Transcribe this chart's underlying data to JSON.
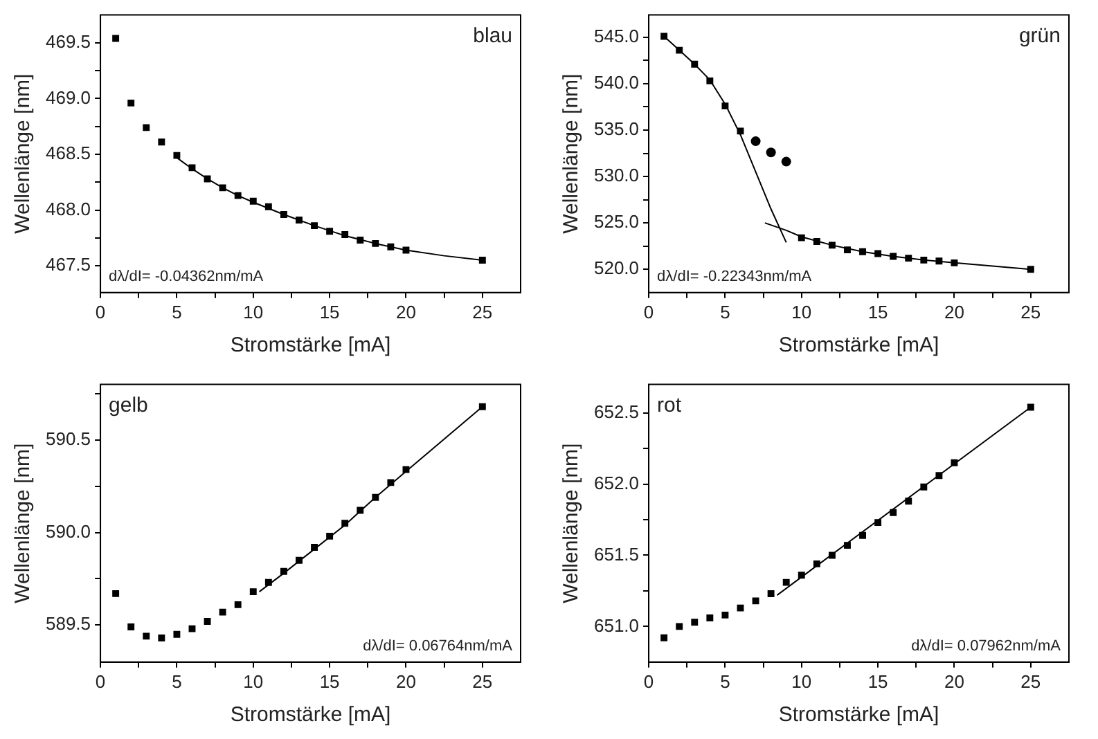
{
  "chart_data": [
    {
      "type": "scatter",
      "xlabel": "Stromstärke [mA]",
      "ylabel": "Wellenlänge [nm]",
      "annotations": [
        "blau",
        "dλ/dI= -0.04362nm/mA"
      ],
      "marker": "square",
      "xlim": [
        0,
        27.5
      ],
      "xticks": [
        0,
        {
          "value": 2.5,
          "label": null
        },
        5,
        {
          "value": 7.5,
          "label": null
        },
        10,
        {
          "value": 12.5,
          "label": null
        },
        15,
        {
          "value": 17.5,
          "label": null
        },
        20,
        {
          "value": 22.5,
          "label": null
        },
        25
      ],
      "ylim": [
        467.26,
        469.75
      ],
      "yticks": [
        {
          "value": 467.5,
          "label": "467.5"
        },
        {
          "value": 467.75,
          "label": null
        },
        {
          "value": 468.0,
          "label": "468.0"
        },
        {
          "value": 468.25,
          "label": null
        },
        {
          "value": 468.5,
          "label": "468.5"
        },
        {
          "value": 468.75,
          "label": null
        },
        {
          "value": 469.0,
          "label": "469.0"
        },
        {
          "value": 469.25,
          "label": null
        },
        {
          "value": 469.5,
          "label": "469.5"
        }
      ],
      "series": [
        {
          "type": "scatter",
          "color": "#000000",
          "x": [
            1,
            2,
            3,
            4,
            5,
            6,
            7,
            8,
            9,
            10,
            11,
            12,
            13,
            14,
            15,
            16,
            17,
            18,
            19,
            20,
            25
          ],
          "values": [
            469.54,
            468.96,
            468.74,
            468.61,
            468.49,
            468.38,
            468.28,
            468.2,
            468.13,
            468.08,
            468.03,
            467.96,
            467.91,
            467.86,
            467.81,
            467.78,
            467.73,
            467.7,
            467.67,
            467.64,
            467.55
          ]
        },
        {
          "type": "line",
          "color": "#000000",
          "marker": "none",
          "x": [
            5,
            6,
            7,
            8,
            9,
            10,
            12,
            14,
            16,
            18,
            20,
            22.5,
            25
          ],
          "values": [
            468.47,
            468.37,
            468.28,
            468.2,
            468.13,
            468.07,
            467.96,
            467.86,
            467.77,
            467.7,
            467.64,
            467.59,
            467.55
          ]
        }
      ]
    },
    {
      "type": "scatter",
      "xlabel": "Stromstärke [mA]",
      "ylabel": "Wellenlänge [nm]",
      "annotations": [
        "grün",
        "dλ/dI= -0.22343nm/mA"
      ],
      "marker": "square",
      "xlim": [
        0,
        27.5
      ],
      "xticks": [
        0,
        {
          "value": 2.5,
          "label": null
        },
        5,
        {
          "value": 7.5,
          "label": null
        },
        10,
        {
          "value": 12.5,
          "label": null
        },
        15,
        {
          "value": 17.5,
          "label": null
        },
        20,
        {
          "value": 22.5,
          "label": null
        },
        25
      ],
      "ylim": [
        517.5,
        547.4
      ],
      "yticks": [
        {
          "value": 520,
          "label": "520.0"
        },
        {
          "value": 522.5,
          "label": null
        },
        {
          "value": 525,
          "label": "525.0"
        },
        {
          "value": 527.5,
          "label": null
        },
        {
          "value": 530,
          "label": "530.0"
        },
        {
          "value": 532.5,
          "label": null
        },
        {
          "value": 535,
          "label": "535.0"
        },
        {
          "value": 537.5,
          "label": null
        },
        {
          "value": 540,
          "label": "540.0"
        },
        {
          "value": 542.5,
          "label": null
        },
        {
          "value": 545,
          "label": "545.0"
        }
      ],
      "series": [
        {
          "type": "scatter",
          "color": "#000000",
          "x": [
            1,
            2,
            3,
            4,
            5,
            6,
            10,
            11,
            12,
            13,
            14,
            15,
            16,
            17,
            18,
            19,
            20,
            25
          ],
          "values": [
            545.1,
            543.6,
            542.1,
            540.3,
            537.6,
            534.9,
            523.4,
            523.0,
            522.6,
            522.1,
            521.9,
            521.7,
            521.4,
            521.2,
            521.0,
            520.9,
            520.7,
            520.0
          ]
        },
        {
          "type": "scatter",
          "color": "#000000",
          "marker": "circle",
          "x": [
            7,
            8,
            9
          ],
          "values": [
            533.8,
            532.6,
            531.6
          ]
        },
        {
          "type": "line",
          "color": "#000000",
          "marker": "none",
          "x": [
            1,
            2,
            3,
            4,
            5,
            6,
            7,
            8,
            9
          ],
          "values": [
            545.1,
            543.6,
            542.1,
            540.4,
            537.8,
            534.5,
            530.5,
            526.5,
            522.9
          ]
        },
        {
          "type": "line",
          "color": "#000000",
          "marker": "none",
          "x": [
            7.6,
            9,
            10,
            12,
            14,
            16,
            18,
            20,
            25
          ],
          "values": [
            525.0,
            524.2,
            523.5,
            522.6,
            521.9,
            521.4,
            521.0,
            520.7,
            520.0
          ]
        }
      ]
    },
    {
      "type": "scatter",
      "xlabel": "Stromstärke [mA]",
      "ylabel": "Wellenlänge [nm]",
      "annotations": [
        "gelb",
        "dλ/dI= 0.06764nm/mA"
      ],
      "marker": "square",
      "xlim": [
        0,
        27.5
      ],
      "xticks": [
        0,
        {
          "value": 2.5,
          "label": null
        },
        5,
        {
          "value": 7.5,
          "label": null
        },
        10,
        {
          "value": 12.5,
          "label": null
        },
        15,
        {
          "value": 17.5,
          "label": null
        },
        20,
        {
          "value": 22.5,
          "label": null
        },
        25
      ],
      "ylim": [
        589.3,
        590.8
      ],
      "yticks": [
        {
          "value": 589.5,
          "label": "589.5"
        },
        {
          "value": 589.75,
          "label": null
        },
        {
          "value": 590.0,
          "label": "590.0"
        },
        {
          "value": 590.25,
          "label": null
        },
        {
          "value": 590.5,
          "label": "590.5"
        },
        {
          "value": 590.75,
          "label": null
        }
      ],
      "series": [
        {
          "type": "scatter",
          "color": "#000000",
          "x": [
            1,
            2,
            3,
            4,
            5,
            6,
            7,
            8,
            9,
            10,
            11,
            12,
            13,
            14,
            15,
            16,
            17,
            18,
            19,
            20,
            25
          ],
          "values": [
            589.67,
            589.49,
            589.44,
            589.43,
            589.45,
            589.48,
            589.52,
            589.57,
            589.61,
            589.68,
            589.73,
            589.79,
            589.85,
            589.92,
            589.98,
            590.05,
            590.12,
            590.19,
            590.27,
            590.34,
            590.68
          ]
        },
        {
          "type": "line",
          "color": "#000000",
          "marker": "none",
          "x": [
            10.4,
            12,
            14,
            16,
            18,
            20,
            25
          ],
          "values": [
            589.68,
            589.78,
            589.91,
            590.04,
            590.19,
            590.33,
            590.68
          ]
        }
      ]
    },
    {
      "type": "scatter",
      "xlabel": "Stromstärke [mA]",
      "ylabel": "Wellenlänge [nm]",
      "annotations": [
        "rot",
        "dλ/dI= 0.07962nm/mA"
      ],
      "marker": "square",
      "xlim": [
        0,
        27.5
      ],
      "xticks": [
        0,
        {
          "value": 2.5,
          "label": null
        },
        5,
        {
          "value": 7.5,
          "label": null
        },
        10,
        {
          "value": 12.5,
          "label": null
        },
        15,
        {
          "value": 17.5,
          "label": null
        },
        20,
        {
          "value": 22.5,
          "label": null
        },
        25
      ],
      "ylim": [
        650.75,
        652.7
      ],
      "yticks": [
        {
          "value": 651.0,
          "label": "651.0"
        },
        {
          "value": 651.25,
          "label": null
        },
        {
          "value": 651.5,
          "label": "651.5"
        },
        {
          "value": 651.75,
          "label": null
        },
        {
          "value": 652.0,
          "label": "652.0"
        },
        {
          "value": 652.25,
          "label": null
        },
        {
          "value": 652.5,
          "label": "652.5"
        }
      ],
      "series": [
        {
          "type": "scatter",
          "color": "#000000",
          "x": [
            1,
            2,
            3,
            4,
            5,
            6,
            7,
            8,
            9,
            10,
            11,
            12,
            13,
            14,
            15,
            16,
            17,
            18,
            19,
            20,
            25
          ],
          "values": [
            650.92,
            651.0,
            651.03,
            651.06,
            651.08,
            651.13,
            651.18,
            651.23,
            651.31,
            651.36,
            651.44,
            651.5,
            651.57,
            651.64,
            651.73,
            651.8,
            651.88,
            651.98,
            652.06,
            652.15,
            652.54
          ]
        },
        {
          "type": "line",
          "color": "#000000",
          "marker": "none",
          "x": [
            8.4,
            25
          ],
          "values": [
            651.22,
            652.54
          ]
        }
      ]
    }
  ]
}
